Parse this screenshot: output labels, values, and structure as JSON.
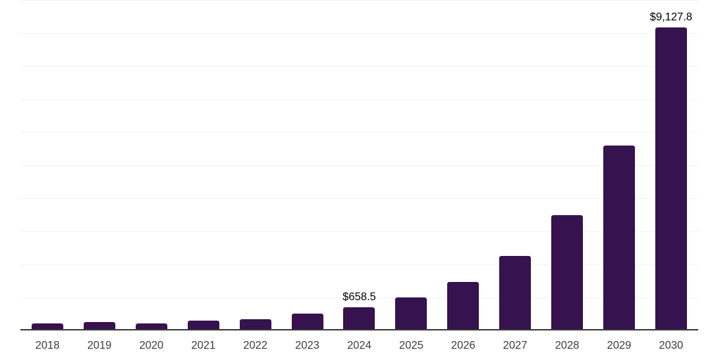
{
  "chart_data": {
    "type": "bar",
    "title": "",
    "xlabel": "",
    "ylabel": "",
    "categories": [
      "2018",
      "2019",
      "2020",
      "2021",
      "2022",
      "2023",
      "2024",
      "2025",
      "2026",
      "2027",
      "2028",
      "2029",
      "2030"
    ],
    "values": [
      170,
      215,
      175,
      255,
      300,
      475,
      658.5,
      960,
      1430,
      2210,
      3440,
      5545,
      9127.8
    ],
    "value_labels": [
      "",
      "",
      "",
      "",
      "",
      "",
      "$658.5",
      "",
      "",
      "",
      "",
      "",
      "$9,127.8"
    ],
    "ylim": [
      0,
      10000
    ],
    "gridline_step": 1000,
    "grid": "horizontal",
    "legend_position": "none",
    "bar_color": "#36124F",
    "value_label_color": "#000000",
    "tick_label_color": "#3C3C3C",
    "gridline_color": "#F2F2F2",
    "axis_line_color": "#3C3C3C"
  }
}
